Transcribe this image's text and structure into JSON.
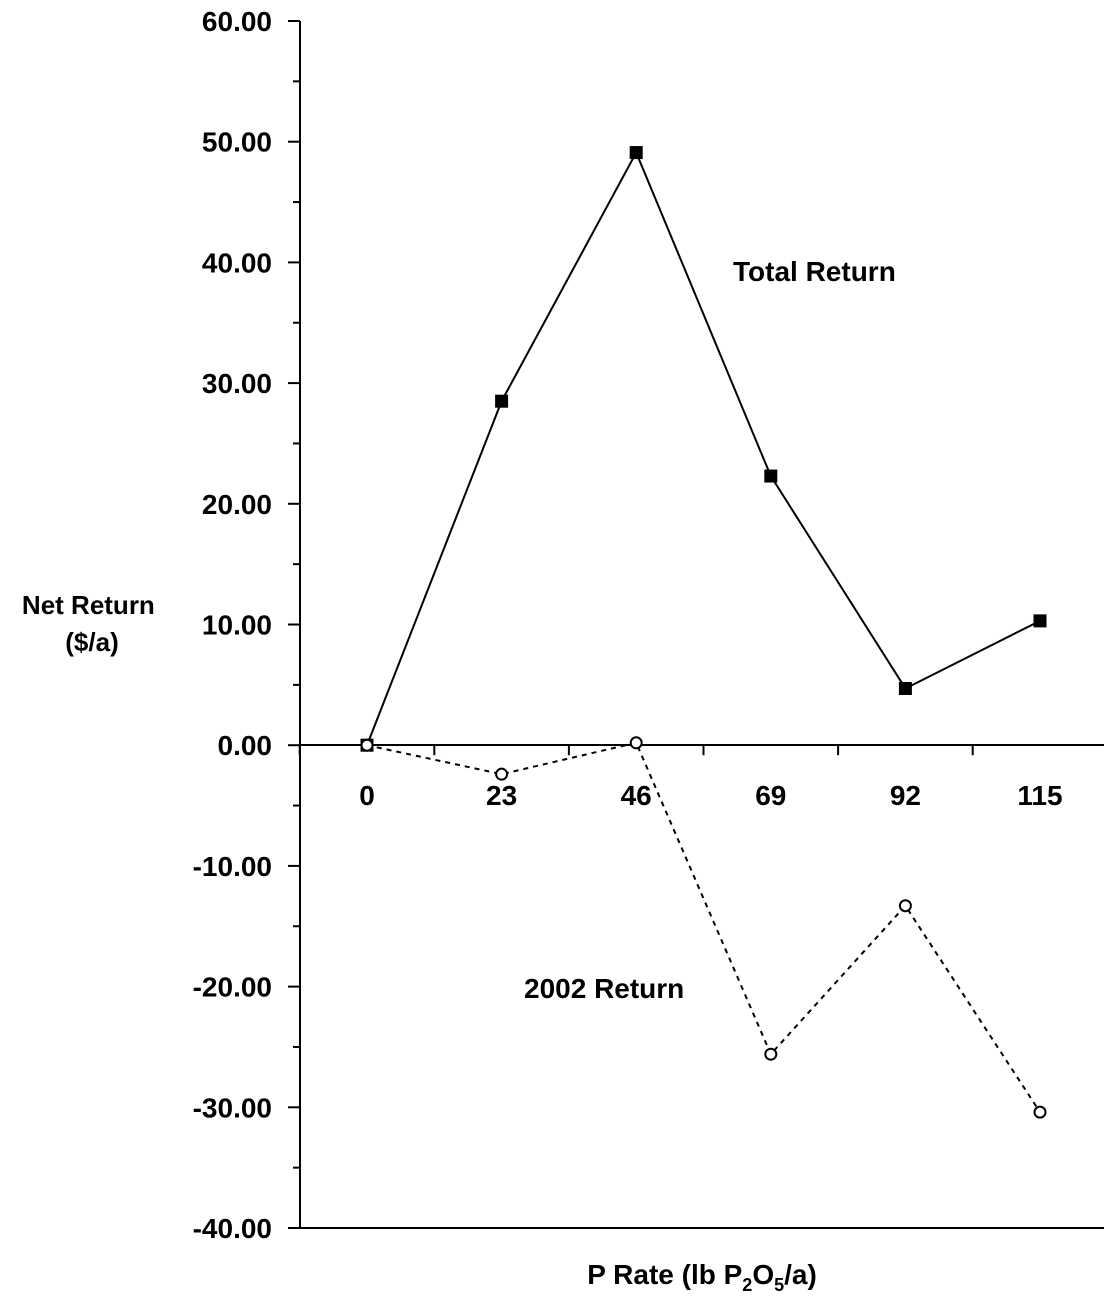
{
  "chart_data": {
    "type": "line",
    "x": [
      0,
      23,
      46,
      69,
      92,
      115
    ],
    "x_tick_labels": [
      "0",
      "23",
      "46",
      "69",
      "92",
      "115"
    ],
    "xlabel": {
      "text": "P Rate (lb P",
      "sub1": "2",
      "mid": "O",
      "sub2": "5",
      "tail": "/a)"
    },
    "ylabel": [
      "Net Return",
      "($/a)"
    ],
    "ylim": [
      -40,
      60
    ],
    "y_ticks": [
      60,
      50,
      40,
      30,
      20,
      10,
      0,
      -10,
      -20,
      -30,
      -40
    ],
    "y_tick_labels": [
      "60.00",
      "50.00",
      "40.00",
      "30.00",
      "20.00",
      "10.00",
      "0.00",
      "-10.00",
      "-20.00",
      "-30.00",
      "-40.00"
    ],
    "y_minor_step": 5,
    "grid": false,
    "series": [
      {
        "name": "Total Return",
        "values": [
          0.0,
          28.5,
          49.1,
          22.3,
          4.7,
          10.3
        ],
        "line": "solid",
        "marker": "filled-square",
        "color": "#000000"
      },
      {
        "name": "2002 Return",
        "values": [
          0.0,
          -2.4,
          0.2,
          -25.6,
          -13.3,
          -30.4
        ],
        "line": "dotted",
        "marker": "open-circle",
        "color": "#000000"
      }
    ]
  }
}
